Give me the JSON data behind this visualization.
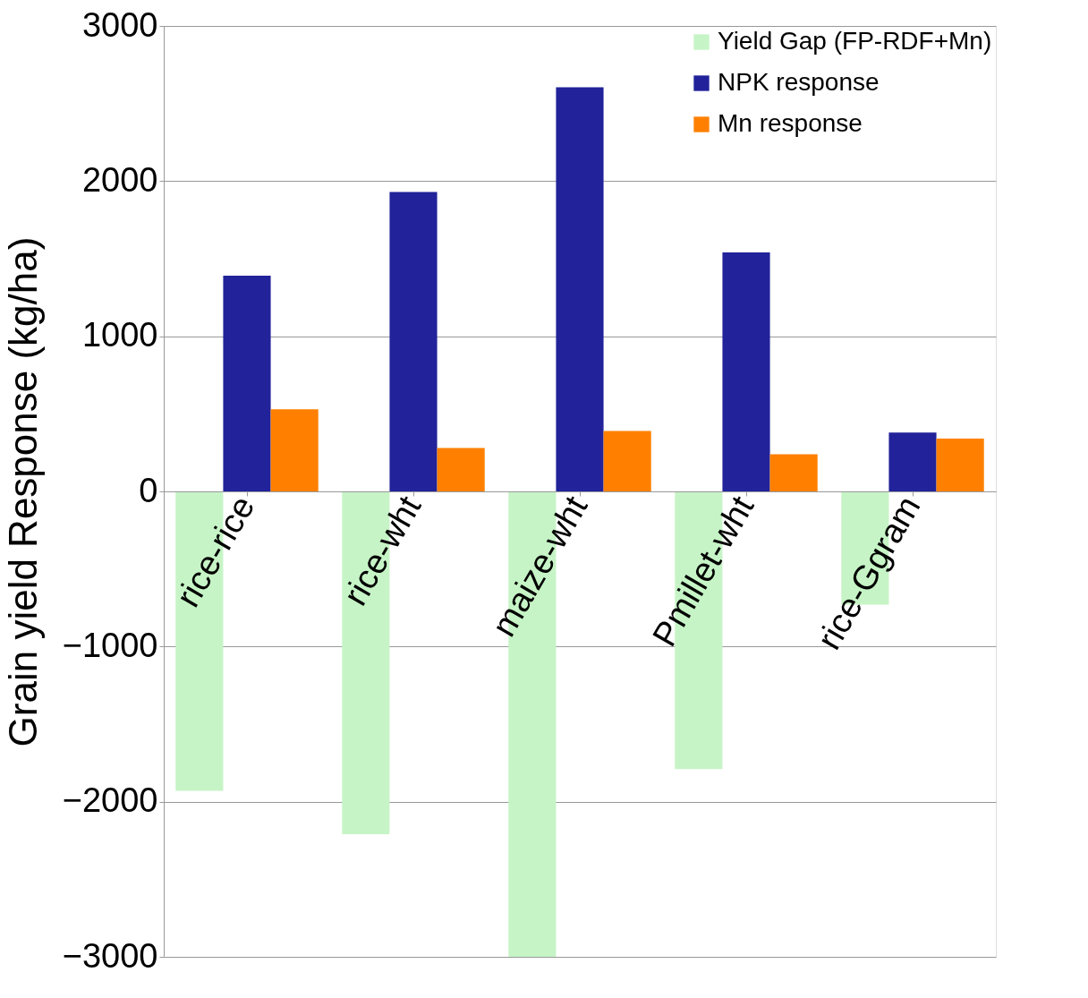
{
  "chart_data": {
    "type": "bar",
    "ylabel": "Grain yield Response (kg/ha)",
    "categories": [
      "rice-rice",
      "rice-wht",
      "maize-wht",
      "Pmillet-wht",
      "rice-Ggram"
    ],
    "series": [
      {
        "name": "Yield Gap (FP-RDF+Mn)",
        "color": "#c6f4c6",
        "values": [
          -1930,
          -2210,
          -3000,
          -1790,
          -730
        ]
      },
      {
        "name": "NPK response",
        "color": "#22229a",
        "values": [
          1390,
          1930,
          2605,
          1540,
          380
        ]
      },
      {
        "name": "Mn response",
        "color": "#ff8000",
        "values": [
          530,
          280,
          390,
          240,
          340
        ]
      }
    ],
    "ylim": [
      -3000,
      3000
    ],
    "yticks": [
      -3000,
      -2000,
      -1000,
      0,
      1000,
      2000,
      3000
    ],
    "grid": "y",
    "legend": "top right"
  }
}
